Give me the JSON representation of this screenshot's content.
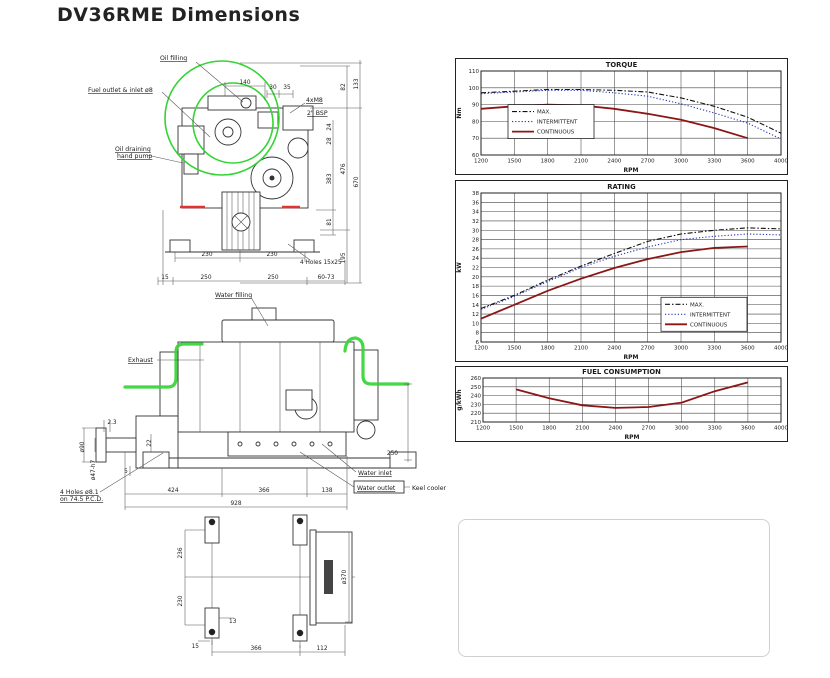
{
  "page": {
    "title": "DV36RME Dimensions"
  },
  "drawings": {
    "front": {
      "labels": {
        "oil_filling": "Oil filling",
        "fuel_outlet": "Fuel outlet & inlet ø8",
        "oil_drain1": "Oil draining",
        "oil_drain2": "hand pump",
        "bolts": "4xM8",
        "bsp": "2\" BSP",
        "holes": "4 Holes 15x25",
        "d140": "140",
        "d30": "30",
        "d35": "35",
        "d82": "82",
        "d133": "133",
        "d24": "24",
        "d28": "28",
        "d476": "476",
        "d383": "383",
        "d670": "670",
        "d81": "81",
        "d195": "195",
        "d230a": "230",
        "d230b": "230",
        "d15": "15",
        "d250a": "250",
        "d250b": "250",
        "d6073": "60-73"
      }
    },
    "side": {
      "labels": {
        "water_filling": "Water filling",
        "exhaust": "Exhaust",
        "water_inlet": "Water inlet",
        "water_outlet": "Water outlet",
        "keel_cooler": "Keel cooler",
        "holes1": "4 Holes ø8.1",
        "holes2": "on 74.5 P.C.D.",
        "d23": "2.3",
        "d22": "22",
        "d90": "ø90",
        "d47": "ø47-h7",
        "d5": "5",
        "d424": "424",
        "d366": "366",
        "d138": "138",
        "d928": "928",
        "d250": "250"
      }
    },
    "bottom": {
      "labels": {
        "d236": "236",
        "d230": "230",
        "d370": "ø370",
        "d13": "13",
        "d15": "15",
        "d366": "366",
        "d112": "112"
      }
    }
  },
  "chart_data": [
    {
      "type": "line",
      "title": "TORQUE",
      "xlabel": "RPM",
      "ylabel": "Nm",
      "x_ticks": [
        1200,
        1500,
        1800,
        2100,
        2400,
        2700,
        3000,
        3300,
        3600,
        4000
      ],
      "ylim": [
        60,
        110
      ],
      "ystep": 10,
      "grid": true,
      "legend": {
        "show": true,
        "x": 0.09,
        "y": 0.4,
        "w": 86
      },
      "series": [
        {
          "name": "MAX.",
          "style": "dashdot",
          "color": "#111111",
          "values": [
            97,
            98,
            99,
            99,
            98.5,
            97.5,
            94,
            89,
            82.5,
            73
          ]
        },
        {
          "name": "INTERMITTENT",
          "style": "dotted",
          "color": "#2233bb",
          "values": [
            96.5,
            97.5,
            98.5,
            98.5,
            97,
            95,
            90.5,
            85,
            79,
            69.5
          ]
        },
        {
          "name": "CONTINUOUS",
          "style": "solid",
          "color": "#8b1616",
          "values": [
            87.5,
            89,
            90,
            89.5,
            87.5,
            84.5,
            81,
            76,
            70,
            null
          ]
        }
      ]
    },
    {
      "type": "line",
      "title": "RATING",
      "xlabel": "RPM",
      "ylabel": "kW",
      "x_ticks": [
        1200,
        1500,
        1800,
        2100,
        2400,
        2700,
        3000,
        3300,
        3600,
        4000
      ],
      "ylim": [
        6,
        38
      ],
      "ystep": 2,
      "grid": true,
      "legend": {
        "show": true,
        "x": 0.6,
        "y": 0.7,
        "w": 86
      },
      "series": [
        {
          "name": "MAX.",
          "style": "dashdot",
          "color": "#111111",
          "values": [
            13.2,
            16,
            19.3,
            22.3,
            25,
            27.6,
            29.2,
            30,
            30.5,
            30.3
          ]
        },
        {
          "name": "INTERMITTENT",
          "style": "dotted",
          "color": "#2233bb",
          "values": [
            13,
            15.8,
            19,
            22,
            24.4,
            26.4,
            28,
            28.7,
            29.2,
            29
          ]
        },
        {
          "name": "CONTINUOUS",
          "style": "solid",
          "color": "#8b1616",
          "values": [
            11,
            14,
            17,
            19.6,
            21.9,
            23.8,
            25.3,
            26.2,
            26.5,
            null
          ]
        }
      ]
    },
    {
      "type": "line",
      "title": "FUEL CONSUMPTION",
      "xlabel": "RPM",
      "ylabel": "g/kWh",
      "x_ticks": [
        1200,
        1500,
        1800,
        2100,
        2400,
        2700,
        3000,
        3300,
        3600,
        4000
      ],
      "ylim": [
        210,
        260
      ],
      "ystep": 10,
      "grid": true,
      "legend": {
        "show": false
      },
      "series": [
        {
          "name": "CONTINUOUS",
          "style": "solid",
          "color": "#8b1616",
          "values": [
            null,
            247,
            237,
            229,
            226,
            227,
            232,
            245,
            255,
            null
          ]
        }
      ]
    }
  ]
}
